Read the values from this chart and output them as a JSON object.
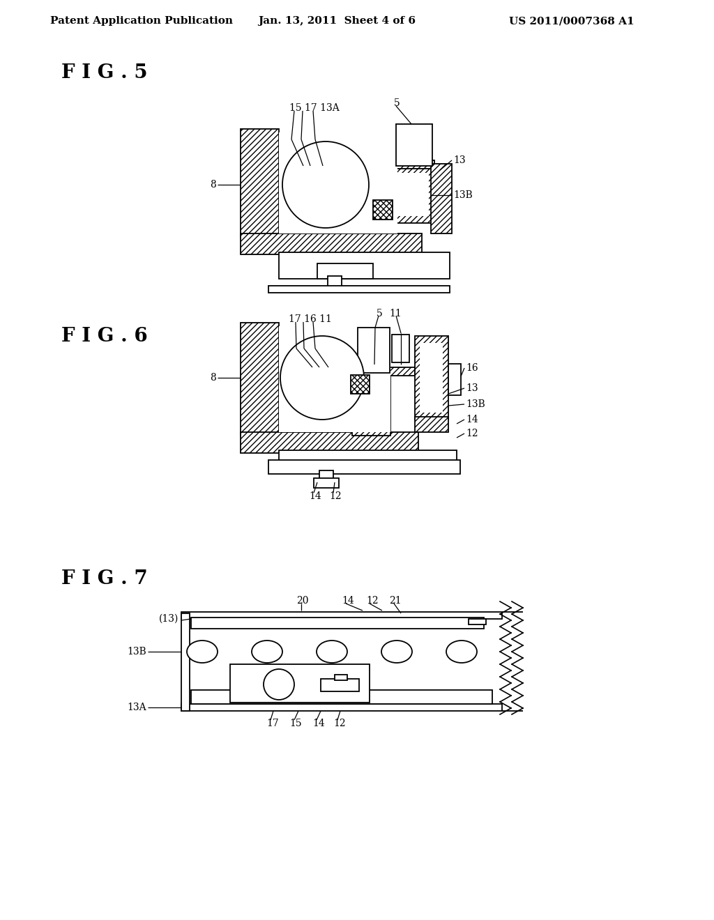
{
  "bg": "#ffffff",
  "lc": "#000000",
  "header_left": "Patent Application Publication",
  "header_mid": "Jan. 13, 2011  Sheet 4 of 6",
  "header_right": "US 2011/0007368 A1",
  "fig5_title": "F I G . 5",
  "fig6_title": "F I G . 6",
  "fig7_title": "F I G . 7"
}
